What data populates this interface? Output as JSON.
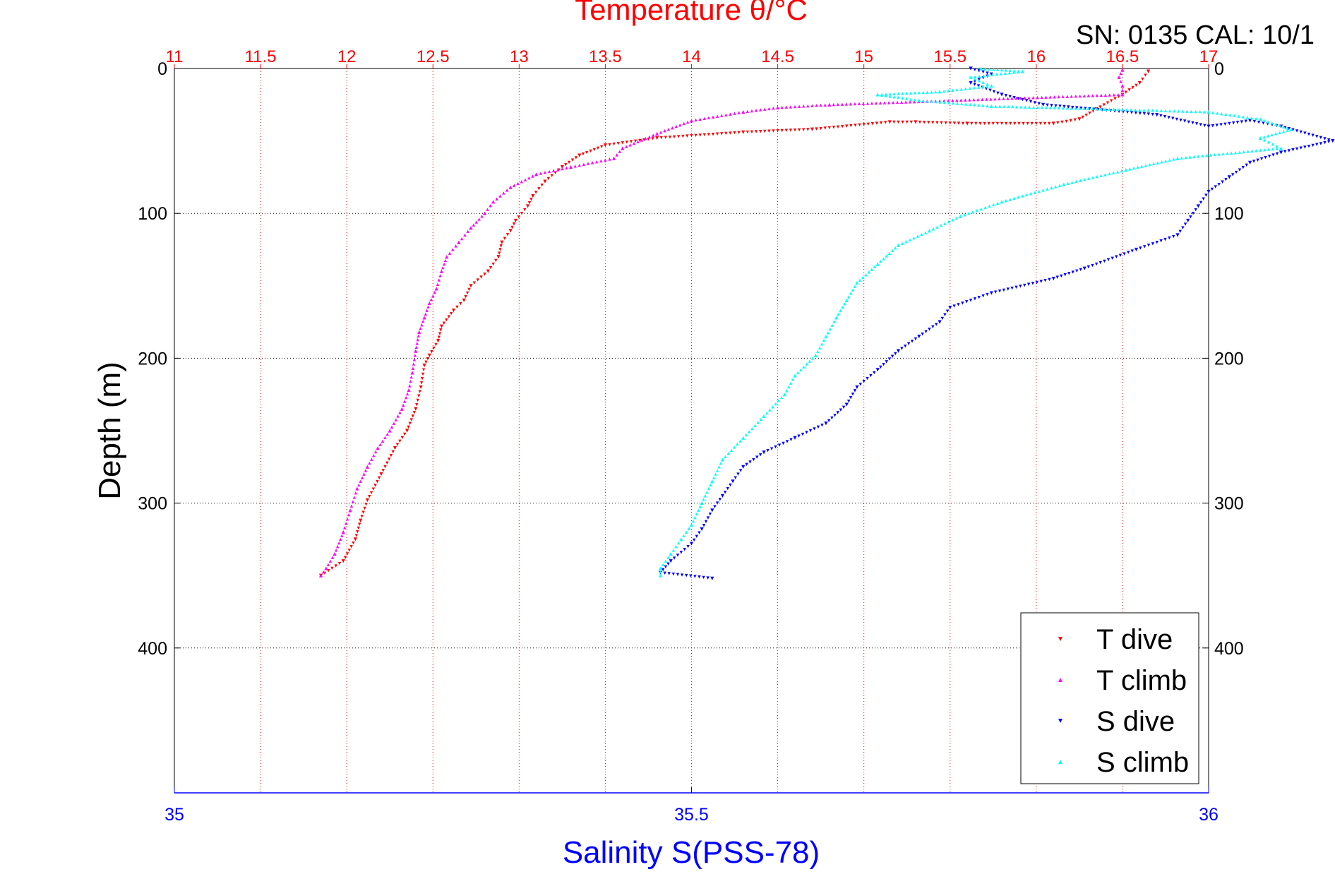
{
  "top_title": "Temperature θ/°C",
  "serial": "SN: 0135  CAL: 10/1",
  "chart_data": {
    "type": "scatter",
    "ylabel": "Depth (m)",
    "ylim": [
      0,
      500
    ],
    "yticks": [
      0,
      100,
      200,
      300,
      400
    ],
    "y_reversed": true,
    "temperature_axis": {
      "label": "Temperature θ/°C",
      "lim": [
        11,
        17
      ],
      "ticks": [
        "11",
        "11.5",
        "12",
        "12.5",
        "13",
        "13.5",
        "14",
        "14.5",
        "15",
        "15.5",
        "16",
        "16.5",
        "17"
      ],
      "color": "#ff0000",
      "grid": "vertical dotted"
    },
    "salinity_axis": {
      "label": "Salinity S(PSS-78)",
      "lim": [
        35,
        36
      ],
      "ticks": [
        "35",
        "35.5",
        "36"
      ],
      "color": "#0000ff"
    },
    "ytick_labels": [
      "0",
      "100",
      "200",
      "300",
      "400"
    ],
    "legend": {
      "position": "bottom-right",
      "entries": [
        {
          "label": "T dive",
          "color": "#ff0000",
          "marker": "down-triangle"
        },
        {
          "label": "T climb",
          "color": "#ff00ff",
          "marker": "up-triangle"
        },
        {
          "label": "S dive",
          "color": "#0000ff",
          "marker": "down-triangle"
        },
        {
          "label": "S climb",
          "color": "#00ffff",
          "marker": "up-triangle"
        }
      ]
    },
    "series": [
      {
        "name": "T dive",
        "axis": "temperature",
        "color": "#ff0000",
        "marker": "down",
        "points": [
          [
            16.65,
            2
          ],
          [
            16.6,
            10
          ],
          [
            16.5,
            18
          ],
          [
            16.35,
            28
          ],
          [
            16.25,
            35
          ],
          [
            16.1,
            38
          ],
          [
            15.6,
            38
          ],
          [
            15.3,
            37
          ],
          [
            15.15,
            37
          ],
          [
            14.7,
            42
          ],
          [
            14.3,
            44
          ],
          [
            13.8,
            48
          ],
          [
            13.5,
            53
          ],
          [
            13.35,
            60
          ],
          [
            13.25,
            68
          ],
          [
            13.15,
            78
          ],
          [
            13.08,
            88
          ],
          [
            13.05,
            95
          ],
          [
            12.98,
            105
          ],
          [
            12.95,
            112
          ],
          [
            12.9,
            120
          ],
          [
            12.88,
            130
          ],
          [
            12.82,
            140
          ],
          [
            12.72,
            150
          ],
          [
            12.68,
            160
          ],
          [
            12.62,
            167
          ],
          [
            12.55,
            178
          ],
          [
            12.53,
            188
          ],
          [
            12.48,
            198
          ],
          [
            12.45,
            205
          ],
          [
            12.43,
            220
          ],
          [
            12.4,
            235
          ],
          [
            12.35,
            250
          ],
          [
            12.28,
            262
          ],
          [
            12.2,
            280
          ],
          [
            12.12,
            298
          ],
          [
            12.08,
            312
          ],
          [
            12.05,
            325
          ],
          [
            11.98,
            340
          ],
          [
            11.85,
            350
          ]
        ]
      },
      {
        "name": "T climb",
        "axis": "temperature",
        "color": "#ff00ff",
        "marker": "up",
        "points": [
          [
            16.5,
            1
          ],
          [
            16.48,
            6
          ],
          [
            16.5,
            12
          ],
          [
            16.5,
            18
          ],
          [
            14.8,
            25
          ],
          [
            14.5,
            27
          ],
          [
            14.3,
            30
          ],
          [
            14.0,
            36
          ],
          [
            13.8,
            45
          ],
          [
            13.6,
            55
          ],
          [
            13.55,
            62
          ],
          [
            13.3,
            68
          ],
          [
            13.1,
            73
          ],
          [
            12.95,
            82
          ],
          [
            12.85,
            92
          ],
          [
            12.8,
            100
          ],
          [
            12.72,
            110
          ],
          [
            12.65,
            120
          ],
          [
            12.58,
            130
          ],
          [
            12.55,
            140
          ],
          [
            12.52,
            152
          ],
          [
            12.48,
            162
          ],
          [
            12.45,
            172
          ],
          [
            12.42,
            182
          ],
          [
            12.4,
            195
          ],
          [
            12.38,
            210
          ],
          [
            12.36,
            222
          ],
          [
            12.32,
            235
          ],
          [
            12.25,
            250
          ],
          [
            12.18,
            262
          ],
          [
            12.12,
            275
          ],
          [
            12.06,
            290
          ],
          [
            12.02,
            305
          ],
          [
            11.98,
            320
          ],
          [
            11.93,
            335
          ],
          [
            11.88,
            345
          ],
          [
            11.85,
            350
          ]
        ]
      },
      {
        "name": "S dive",
        "axis": "salinity",
        "color": "#0000ff",
        "marker": "down",
        "points": [
          [
            35.77,
            0
          ],
          [
            35.79,
            4
          ],
          [
            35.77,
            10
          ],
          [
            35.8,
            18
          ],
          [
            35.84,
            25
          ],
          [
            35.95,
            32
          ],
          [
            36.0,
            40
          ],
          [
            36.04,
            36
          ],
          [
            36.07,
            40
          ],
          [
            36.12,
            50
          ],
          [
            36.07,
            58
          ],
          [
            36.04,
            65
          ],
          [
            36.02,
            75
          ],
          [
            36.0,
            85
          ],
          [
            35.99,
            95
          ],
          [
            35.98,
            105
          ],
          [
            35.97,
            115
          ],
          [
            35.93,
            125
          ],
          [
            35.88,
            138
          ],
          [
            35.85,
            145
          ],
          [
            35.79,
            155
          ],
          [
            35.75,
            165
          ],
          [
            35.74,
            175
          ],
          [
            35.72,
            185
          ],
          [
            35.7,
            195
          ],
          [
            35.68,
            208
          ],
          [
            35.66,
            220
          ],
          [
            35.65,
            232
          ],
          [
            35.63,
            245
          ],
          [
            35.6,
            255
          ],
          [
            35.57,
            265
          ],
          [
            35.55,
            275
          ],
          [
            35.54,
            285
          ],
          [
            35.53,
            295
          ],
          [
            35.52,
            305
          ],
          [
            35.51,
            318
          ],
          [
            35.5,
            328
          ],
          [
            35.48,
            340
          ],
          [
            35.47,
            348
          ],
          [
            35.52,
            352
          ]
        ]
      },
      {
        "name": "S climb",
        "axis": "salinity",
        "color": "#00ffff",
        "marker": "up",
        "points": [
          [
            35.78,
            0
          ],
          [
            35.82,
            2
          ],
          [
            35.77,
            6
          ],
          [
            35.79,
            12
          ],
          [
            35.74,
            16
          ],
          [
            35.68,
            18
          ],
          [
            35.72,
            22
          ],
          [
            35.79,
            26
          ],
          [
            35.9,
            28
          ],
          [
            36.0,
            30
          ],
          [
            36.05,
            35
          ],
          [
            36.08,
            42
          ],
          [
            36.05,
            48
          ],
          [
            36.07,
            55
          ],
          [
            35.97,
            62
          ],
          [
            35.92,
            70
          ],
          [
            35.86,
            80
          ],
          [
            35.8,
            92
          ],
          [
            35.76,
            102
          ],
          [
            35.73,
            112
          ],
          [
            35.7,
            122
          ],
          [
            35.68,
            135
          ],
          [
            35.66,
            148
          ],
          [
            35.65,
            160
          ],
          [
            35.64,
            172
          ],
          [
            35.63,
            185
          ],
          [
            35.62,
            198
          ],
          [
            35.6,
            212
          ],
          [
            35.59,
            225
          ],
          [
            35.57,
            240
          ],
          [
            35.55,
            255
          ],
          [
            35.53,
            270
          ],
          [
            35.52,
            285
          ],
          [
            35.51,
            300
          ],
          [
            35.5,
            315
          ],
          [
            35.49,
            325
          ],
          [
            35.48,
            335
          ],
          [
            35.47,
            345
          ],
          [
            35.47,
            350
          ]
        ]
      }
    ]
  }
}
